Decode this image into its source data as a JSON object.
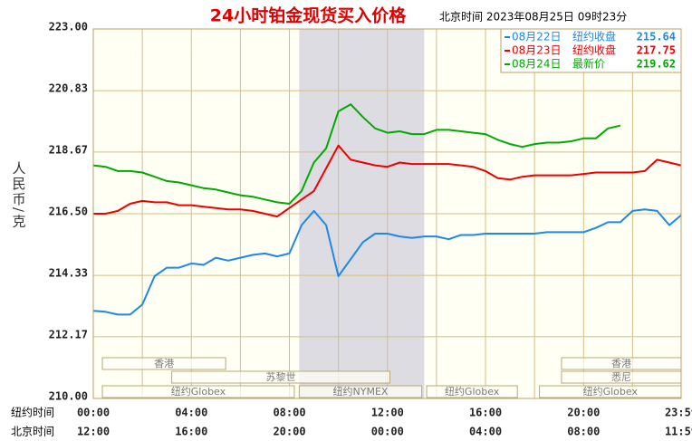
{
  "chart_data": {
    "type": "line",
    "title": "24小时铂金现货买入价格",
    "subtitle": "北京时间 2023年08月25日 09时23分",
    "y_label": "人民币/克",
    "x_row_labels": [
      "纽约时间",
      "北京时间"
    ],
    "x": [
      0,
      0.5,
      1,
      1.5,
      2,
      2.5,
      3,
      3.5,
      4,
      4.5,
      5,
      5.5,
      6,
      6.5,
      7,
      7.5,
      8,
      8.5,
      9,
      9.5,
      10,
      10.5,
      11,
      11.5,
      12,
      12.5,
      13,
      13.5,
      14,
      14.5,
      15,
      15.5,
      16,
      16.5,
      17,
      17.5,
      18,
      18.5,
      19,
      19.5,
      20,
      20.5,
      21,
      21.5,
      22,
      22.5,
      23,
      23.5,
      23.98
    ],
    "xlim": [
      0,
      23.98
    ],
    "xticks": [
      {
        "value": 0,
        "label": "00:00"
      },
      {
        "value": 4,
        "label": "04:00"
      },
      {
        "value": 8,
        "label": "08:00"
      },
      {
        "value": 12,
        "label": "12:00"
      },
      {
        "value": 16,
        "label": "16:00"
      },
      {
        "value": 20,
        "label": "20:00"
      },
      {
        "value": 23.98,
        "label": "23:59"
      }
    ],
    "xticks_beijing": [
      "12:00",
      "16:00",
      "20:00",
      "00:00",
      "04:00",
      "08:00",
      "11:59"
    ],
    "xgrid": [
      2,
      6,
      10,
      14,
      18,
      22
    ],
    "ylim": [
      210,
      223
    ],
    "yticks": [
      {
        "value": 223,
        "label": "223.00"
      },
      {
        "value": 220.83,
        "label": "220.83"
      },
      {
        "value": 218.67,
        "label": "218.67"
      },
      {
        "value": 216.5,
        "label": "216.50"
      },
      {
        "value": 214.33,
        "label": "214.33"
      },
      {
        "value": 212.17,
        "label": "212.17"
      },
      {
        "value": 210,
        "label": "210.00"
      }
    ],
    "grid": true,
    "shade": [
      8.4,
      13.5
    ],
    "series": [
      {
        "name": "08月22日",
        "color": "#1e88e5",
        "legend_label": "纽约收盘",
        "legend_value": 215.64,
        "values": [
          213.08,
          213.05,
          212.95,
          212.95,
          213.3,
          214.3,
          214.6,
          214.6,
          214.75,
          214.7,
          214.95,
          214.85,
          214.95,
          215.05,
          215.1,
          215.0,
          215.1,
          216.1,
          216.6,
          216.1,
          214.3,
          214.9,
          215.5,
          215.8,
          215.8,
          215.7,
          215.65,
          215.7,
          215.7,
          215.6,
          215.75,
          215.75,
          215.8,
          215.8,
          215.8,
          215.8,
          215.8,
          215.85,
          215.85,
          215.85,
          215.85,
          216.0,
          216.2,
          216.2,
          216.6,
          216.65,
          216.6,
          216.1,
          216.45
        ]
      },
      {
        "name": "08月23日",
        "color": "#ee0000",
        "legend_label": "纽约收盘",
        "legend_value": 217.75,
        "values": [
          216.5,
          216.5,
          216.6,
          216.85,
          216.95,
          216.9,
          216.9,
          216.8,
          216.8,
          216.75,
          216.7,
          216.65,
          216.65,
          216.6,
          216.5,
          216.4,
          216.7,
          217.0,
          217.3,
          218.1,
          218.9,
          218.4,
          218.3,
          218.2,
          218.15,
          218.3,
          218.25,
          218.25,
          218.25,
          218.25,
          218.2,
          218.15,
          218.0,
          217.75,
          217.7,
          217.8,
          217.85,
          217.85,
          217.85,
          217.85,
          217.9,
          217.95,
          217.95,
          217.95,
          217.95,
          218.0,
          218.4,
          218.3,
          218.2
        ]
      },
      {
        "name": "08月24日",
        "color": "#00aa00",
        "legend_label": "最新价",
        "legend_value": 219.62,
        "values": [
          218.2,
          218.15,
          218.0,
          218.0,
          217.95,
          217.8,
          217.65,
          217.6,
          217.5,
          217.4,
          217.35,
          217.25,
          217.15,
          217.1,
          217.0,
          216.9,
          216.85,
          217.3,
          218.3,
          218.8,
          220.1,
          220.35,
          219.9,
          219.5,
          219.35,
          219.4,
          219.3,
          219.3,
          219.45,
          219.45,
          219.4,
          219.35,
          219.3,
          219.1,
          218.95,
          218.85,
          218.95,
          219.0,
          219.0,
          219.05,
          219.15,
          219.15,
          219.5,
          219.6,
          null,
          null,
          null,
          null,
          null
        ]
      }
    ],
    "sessions": [
      {
        "label": "香港",
        "start": 0.37,
        "end": 5.4,
        "row": 0
      },
      {
        "label": "苏黎世",
        "start": 3.2,
        "end": 12.1,
        "row": 1
      },
      {
        "label": "纽约Globex",
        "start": 0.37,
        "end": 8.2,
        "row": 2
      },
      {
        "label": "纽约NYMEX",
        "start": 8.4,
        "end": 13.4,
        "row": 2
      },
      {
        "label": "纽约Globex",
        "start": 13.6,
        "end": 17.3,
        "row": 2
      },
      {
        "label": "纽约Globex",
        "start": 18.2,
        "end": 23.98,
        "row": 2
      },
      {
        "label": "香港",
        "start": 19.1,
        "end": 23.98,
        "row": 0
      },
      {
        "label": "悉尼",
        "start": 19.1,
        "end": 23.98,
        "row": 1
      }
    ]
  }
}
